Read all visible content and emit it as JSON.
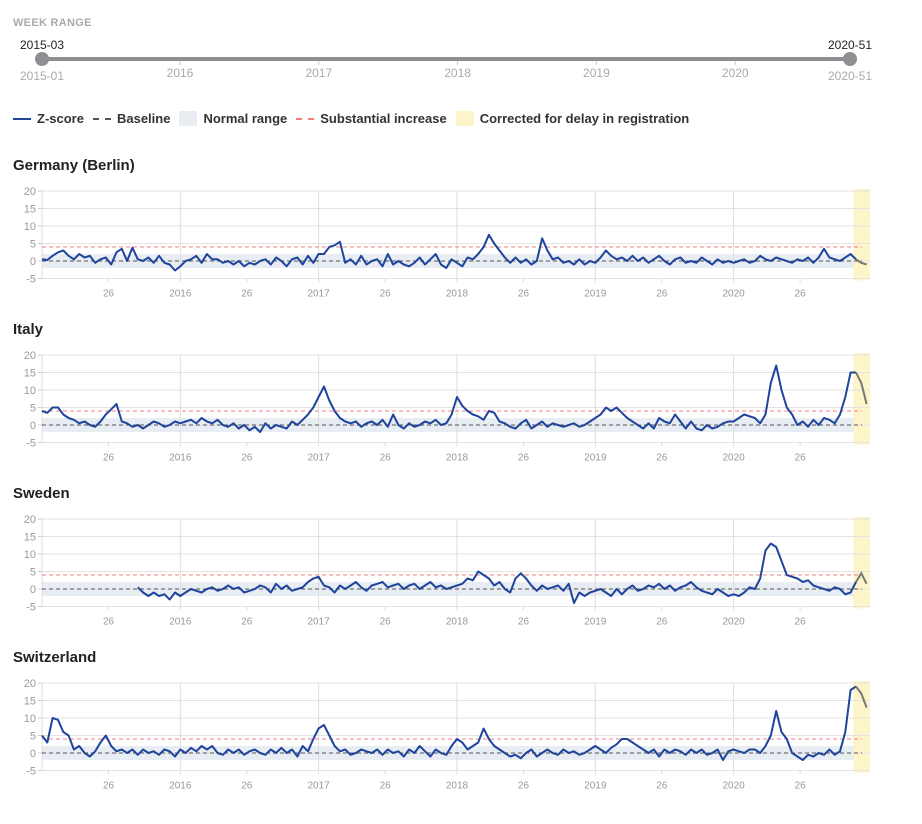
{
  "week_range": {
    "label": "WEEK RANGE",
    "selected_start": "2015-03",
    "selected_end": "2020-51",
    "min_label": "2015-01",
    "max_label": "2020-51",
    "year_ticks": [
      "2016",
      "2017",
      "2018",
      "2019",
      "2020"
    ]
  },
  "legend": {
    "zscore": "Z-score",
    "baseline": "Baseline",
    "normal_range": "Normal range",
    "substantial": "Substantial increase",
    "corrected": "Corrected for delay in registration"
  },
  "colors": {
    "line": "#1f449c",
    "baseline": "#555555",
    "band": "#e8edf3",
    "threshold": "#f08080",
    "corrected": "#fdf5c9",
    "corrected_line": "#777777"
  },
  "chart_data": [
    {
      "type": "line",
      "title": "Germany (Berlin)",
      "ylim": [
        -5,
        20
      ],
      "yticks": [
        20,
        15,
        10,
        5,
        0,
        -5
      ],
      "normal_range": [
        -2,
        2
      ],
      "baseline": 0,
      "threshold": 4,
      "week_step": 2,
      "corrected_points": 2,
      "xticks": [
        {
          "w": 25,
          "label": "26"
        },
        {
          "w": 52,
          "label": "2016"
        },
        {
          "w": 77,
          "label": "26"
        },
        {
          "w": 104,
          "label": "2017"
        },
        {
          "w": 129,
          "label": "26"
        },
        {
          "w": 156,
          "label": "2018"
        },
        {
          "w": 181,
          "label": "26"
        },
        {
          "w": 208,
          "label": "2019"
        },
        {
          "w": 233,
          "label": "26"
        },
        {
          "w": 260,
          "label": "2020"
        },
        {
          "w": 285,
          "label": "26"
        }
      ],
      "values": [
        0.5,
        0.3,
        1.5,
        2.5,
        3,
        1.5,
        0.5,
        2,
        1,
        1.5,
        -0.5,
        0.5,
        1,
        -1,
        2.5,
        3.5,
        0,
        3.8,
        0.5,
        0,
        1,
        -0.5,
        1.5,
        -0.5,
        -1,
        -2.7,
        -1.5,
        0,
        0.5,
        1.5,
        -0.5,
        2,
        0.5,
        0.5,
        -0.5,
        0,
        -1,
        0,
        -1.5,
        -0.5,
        -1,
        0,
        0.5,
        -1,
        1,
        0,
        -1.5,
        0.5,
        1,
        -1,
        1.5,
        -0.5,
        2,
        2,
        4,
        4.5,
        5.5,
        -0.5,
        0.5,
        -1,
        1.5,
        -1,
        0,
        0.5,
        -1.5,
        2,
        -1,
        0,
        -1,
        -1.5,
        -0.5,
        1,
        -1,
        0.5,
        2,
        -1,
        -2,
        0.5,
        -0.5,
        -1.5,
        1,
        0.5,
        2,
        4,
        7.5,
        5,
        3,
        1,
        -0.5,
        1,
        -0.5,
        0.5,
        -1,
        0,
        6.5,
        3,
        0.5,
        1,
        -0.5,
        0,
        -1,
        0.5,
        -1,
        0,
        -0.5,
        1,
        3,
        1.5,
        0.5,
        1,
        0,
        1.5,
        0,
        1,
        -0.5,
        0.5,
        1.5,
        0,
        -1,
        0.5,
        1,
        -0.5,
        0,
        -0.5,
        1,
        0,
        -1,
        0.5,
        -0.5,
        0,
        -0.5,
        0,
        0.5,
        -0.5,
        0,
        1.5,
        0.5,
        0,
        1,
        0.5,
        0,
        -0.5,
        0.5,
        0,
        1,
        -0.5,
        1,
        3.5,
        1,
        0.5,
        0,
        1,
        2,
        0.5,
        -0.5,
        -1
      ]
    },
    {
      "type": "line",
      "title": "Italy",
      "ylim": [
        -5,
        20
      ],
      "yticks": [
        20,
        15,
        10,
        5,
        0,
        -5
      ],
      "normal_range": [
        -2,
        2
      ],
      "baseline": 0,
      "threshold": 4,
      "week_step": 2,
      "corrected_points": 2,
      "xticks": [
        {
          "w": 25,
          "label": "26"
        },
        {
          "w": 52,
          "label": "2016"
        },
        {
          "w": 77,
          "label": "26"
        },
        {
          "w": 104,
          "label": "2017"
        },
        {
          "w": 129,
          "label": "26"
        },
        {
          "w": 156,
          "label": "2018"
        },
        {
          "w": 181,
          "label": "26"
        },
        {
          "w": 208,
          "label": "2019"
        },
        {
          "w": 233,
          "label": "26"
        },
        {
          "w": 260,
          "label": "2020"
        },
        {
          "w": 285,
          "label": "26"
        }
      ],
      "values": [
        4,
        3.5,
        5,
        5,
        3,
        2,
        1.5,
        0.5,
        1,
        0,
        -0.5,
        1,
        3,
        4.5,
        6,
        1,
        0.5,
        -0.5,
        0,
        -1,
        0,
        1,
        0.5,
        -0.5,
        0,
        1,
        0.5,
        1,
        1.5,
        0.5,
        2,
        1,
        0.5,
        1.5,
        0,
        -0.5,
        0.5,
        -1,
        0,
        -1.5,
        -0.5,
        -2,
        0.5,
        -1,
        0,
        -0.5,
        -1,
        1,
        0,
        1.5,
        3,
        5,
        8,
        11,
        7,
        4,
        2,
        1,
        0.5,
        1,
        -0.5,
        0.5,
        1,
        0,
        1.5,
        -0.5,
        3,
        0,
        -1,
        0.5,
        -0.5,
        0,
        1,
        0.5,
        1.5,
        0,
        0.5,
        3,
        8,
        5.5,
        4,
        3,
        2.5,
        1.5,
        4,
        3.5,
        1,
        0.5,
        -0.5,
        -1,
        0.5,
        1.5,
        -1,
        0,
        1,
        -0.5,
        0.5,
        0,
        -0.5,
        0,
        0.5,
        -0.5,
        0,
        1,
        2,
        3,
        5,
        4,
        5,
        3.5,
        2,
        1,
        0,
        -1,
        0.5,
        -1,
        2,
        1,
        0.5,
        3,
        1,
        -1,
        1,
        -1,
        -1.5,
        0,
        -1,
        -0.5,
        0.5,
        1,
        1,
        2,
        3,
        2.5,
        2,
        0.5,
        3,
        12,
        17,
        10,
        5,
        3,
        0,
        1,
        -0.5,
        1.5,
        0,
        2,
        1.5,
        0.5,
        3,
        8,
        15,
        15,
        12,
        6
      ]
    },
    {
      "type": "line",
      "title": "Sweden",
      "ylim": [
        -5,
        20
      ],
      "yticks": [
        20,
        15,
        10,
        5,
        0,
        -5
      ],
      "normal_range": [
        -2,
        2
      ],
      "baseline": 0,
      "threshold": 4,
      "week_step": 2,
      "corrected_points": 2,
      "xticks": [
        {
          "w": 25,
          "label": "26"
        },
        {
          "w": 52,
          "label": "2016"
        },
        {
          "w": 77,
          "label": "26"
        },
        {
          "w": 104,
          "label": "2017"
        },
        {
          "w": 129,
          "label": "26"
        },
        {
          "w": 156,
          "label": "2018"
        },
        {
          "w": 181,
          "label": "26"
        },
        {
          "w": 208,
          "label": "2019"
        },
        {
          "w": 233,
          "label": "26"
        },
        {
          "w": 260,
          "label": "2020"
        },
        {
          "w": 285,
          "label": "26"
        }
      ],
      "values": [
        null,
        null,
        null,
        null,
        null,
        null,
        null,
        null,
        null,
        null,
        null,
        null,
        null,
        null,
        null,
        null,
        null,
        null,
        0.5,
        -1,
        -2,
        -1,
        -2,
        -1.5,
        -3,
        -1,
        -2,
        -1,
        0,
        -0.5,
        -1,
        0,
        0.5,
        -0.5,
        0,
        1,
        0,
        0.5,
        -1,
        -0.5,
        0,
        1,
        0.5,
        -1,
        1.5,
        0,
        1,
        -0.5,
        0,
        0.5,
        2,
        3,
        3.5,
        1,
        0.5,
        -1,
        1,
        0,
        1,
        2,
        0.5,
        -0.5,
        1,
        1.5,
        2,
        0.5,
        1,
        1.5,
        0,
        1,
        1.5,
        0,
        1,
        2,
        0.5,
        1,
        0,
        0.5,
        1,
        1.5,
        3,
        2.5,
        5,
        4,
        3,
        1,
        2,
        0,
        -1,
        3,
        4.5,
        3,
        1,
        -0.5,
        1,
        0,
        0.5,
        1,
        -0.5,
        1.5,
        -4,
        -1,
        -2,
        -1,
        -0.5,
        0,
        -1,
        -2,
        0,
        -1.5,
        0,
        1,
        -0.5,
        0,
        1,
        0.5,
        1.5,
        0,
        1,
        -0.5,
        0.5,
        1,
        2,
        0.5,
        -0.5,
        -1,
        -1.5,
        0,
        -1,
        -2,
        -1.5,
        -2,
        -1,
        0.5,
        0,
        3,
        11,
        13,
        12,
        8,
        4,
        3.5,
        3,
        2,
        2.5,
        1,
        0.5,
        0,
        -0.5,
        0.5,
        0,
        -1.5,
        -1,
        2,
        4.5,
        1.5
      ]
    },
    {
      "type": "line",
      "title": "Switzerland",
      "ylim": [
        -5,
        20
      ],
      "yticks": [
        20,
        15,
        10,
        5,
        0,
        -5
      ],
      "normal_range": [
        -2,
        2
      ],
      "baseline": 0,
      "threshold": 4,
      "week_step": 2,
      "corrected_points": 2,
      "xticks": [
        {
          "w": 25,
          "label": "26"
        },
        {
          "w": 52,
          "label": "2016"
        },
        {
          "w": 77,
          "label": "26"
        },
        {
          "w": 104,
          "label": "2017"
        },
        {
          "w": 129,
          "label": "26"
        },
        {
          "w": 156,
          "label": "2018"
        },
        {
          "w": 181,
          "label": "26"
        },
        {
          "w": 208,
          "label": "2019"
        },
        {
          "w": 233,
          "label": "26"
        },
        {
          "w": 260,
          "label": "2020"
        },
        {
          "w": 285,
          "label": "26"
        }
      ],
      "values": [
        5,
        3,
        10,
        9.5,
        6,
        5,
        1,
        2,
        0,
        -1,
        0.5,
        3,
        5,
        2,
        0.5,
        1,
        0,
        1,
        -0.5,
        1,
        0,
        0.5,
        -0.5,
        1,
        0.5,
        -1,
        1,
        0,
        1.5,
        0.5,
        2,
        1,
        2,
        0,
        -0.5,
        1,
        0,
        1,
        -0.5,
        0.5,
        1,
        0,
        -0.5,
        1,
        0,
        1.5,
        0,
        1,
        -1,
        2,
        0.5,
        4,
        7,
        8,
        5,
        2,
        0.5,
        1,
        -0.5,
        0,
        1,
        0.5,
        0,
        1,
        -0.5,
        1,
        0,
        0.5,
        -1,
        1,
        0,
        2,
        0.5,
        -1,
        1,
        0,
        -0.5,
        2,
        4,
        3,
        1,
        2,
        3,
        7,
        4,
        2,
        1,
        0,
        -1,
        -0.5,
        -1.5,
        0,
        1,
        -1,
        0,
        1,
        0,
        -0.5,
        1,
        0,
        0.5,
        -0.5,
        0,
        1,
        2,
        1,
        0,
        1.5,
        2.5,
        4,
        4,
        3,
        2,
        1,
        0,
        1,
        -1,
        1,
        0,
        1,
        0.5,
        -0.5,
        1,
        0,
        1,
        -0.5,
        0,
        1,
        -2,
        0.5,
        1,
        0.5,
        0,
        1,
        1,
        0,
        2,
        5,
        12,
        6,
        4,
        0,
        -1,
        -2,
        -0.5,
        -1,
        0,
        -0.5,
        1,
        -0.5,
        0.5,
        6,
        18,
        19,
        17,
        13
      ]
    }
  ]
}
